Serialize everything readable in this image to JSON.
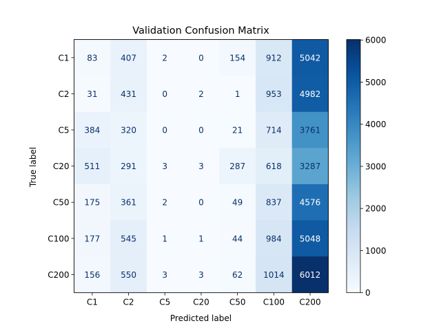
{
  "chart_data": {
    "type": "heatmap",
    "title": "Validation Confusion Matrix",
    "xlabel": "Predicted label",
    "ylabel": "True label",
    "x_categories": [
      "C1",
      "C2",
      "C5",
      "C20",
      "C50",
      "C100",
      "C200"
    ],
    "y_categories": [
      "C1",
      "C2",
      "C5",
      "C20",
      "C50",
      "C100",
      "C200"
    ],
    "values": [
      [
        83,
        407,
        2,
        0,
        154,
        912,
        5042
      ],
      [
        31,
        431,
        0,
        2,
        1,
        953,
        4982
      ],
      [
        384,
        320,
        0,
        0,
        21,
        714,
        3761
      ],
      [
        511,
        291,
        3,
        3,
        287,
        618,
        3287
      ],
      [
        175,
        361,
        2,
        0,
        49,
        837,
        4576
      ],
      [
        177,
        545,
        1,
        1,
        44,
        984,
        5048
      ],
      [
        156,
        550,
        3,
        3,
        62,
        1014,
        6012
      ]
    ],
    "colormap": "Blues",
    "vmin": 0,
    "vmax": 6012,
    "colorbar_ticks": [
      0,
      1000,
      2000,
      3000,
      4000,
      5000,
      6000
    ]
  }
}
